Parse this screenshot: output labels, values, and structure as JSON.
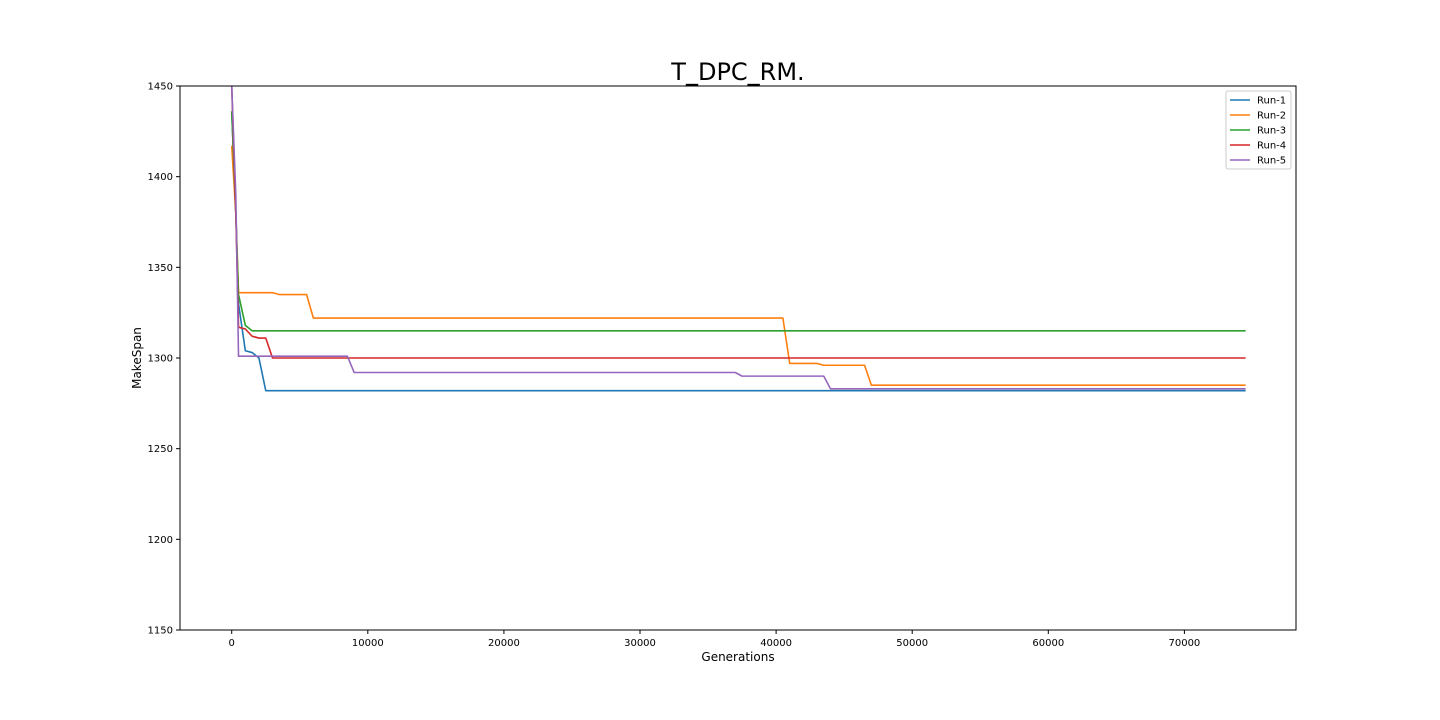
{
  "chart_data": {
    "type": "line",
    "title": "T_DPC_RM.",
    "xlabel": "Generations",
    "ylabel": "MakeSpan",
    "xlim": [
      -3800,
      78200
    ],
    "ylim": [
      1150,
      1450
    ],
    "xticks": [
      0,
      10000,
      20000,
      30000,
      40000,
      50000,
      60000,
      70000
    ],
    "yticks": [
      1150,
      1200,
      1250,
      1300,
      1350,
      1400,
      1450
    ],
    "grid": false,
    "legend": "top-right",
    "series": [
      {
        "name": "Run-1",
        "color": "#1f77b4",
        "points": [
          [
            0,
            1436
          ],
          [
            300,
            1380
          ],
          [
            500,
            1330
          ],
          [
            1000,
            1304
          ],
          [
            1500,
            1303
          ],
          [
            2000,
            1300
          ],
          [
            2500,
            1282
          ],
          [
            74500,
            1282
          ]
        ]
      },
      {
        "name": "Run-2",
        "color": "#ff7f0e",
        "points": [
          [
            0,
            1417
          ],
          [
            300,
            1380
          ],
          [
            500,
            1336
          ],
          [
            3000,
            1336
          ],
          [
            3500,
            1335
          ],
          [
            5500,
            1335
          ],
          [
            6000,
            1322
          ],
          [
            40500,
            1322
          ],
          [
            41000,
            1297
          ],
          [
            43000,
            1297
          ],
          [
            43500,
            1296
          ],
          [
            46500,
            1296
          ],
          [
            47000,
            1285
          ],
          [
            74500,
            1285
          ]
        ]
      },
      {
        "name": "Run-3",
        "color": "#2ca02c",
        "points": [
          [
            0,
            1436
          ],
          [
            300,
            1380
          ],
          [
            500,
            1335
          ],
          [
            1000,
            1318
          ],
          [
            1500,
            1315
          ],
          [
            74500,
            1315
          ]
        ]
      },
      {
        "name": "Run-4",
        "color": "#d62728",
        "points": [
          [
            0,
            1450
          ],
          [
            300,
            1380
          ],
          [
            500,
            1317
          ],
          [
            1000,
            1316
          ],
          [
            1500,
            1312
          ],
          [
            2000,
            1311
          ],
          [
            2500,
            1311
          ],
          [
            3000,
            1300
          ],
          [
            74500,
            1300
          ]
        ]
      },
      {
        "name": "Run-5",
        "color": "#9467bd",
        "points": [
          [
            0,
            1450
          ],
          [
            300,
            1390
          ],
          [
            500,
            1301
          ],
          [
            8500,
            1301
          ],
          [
            9000,
            1292
          ],
          [
            37000,
            1292
          ],
          [
            37500,
            1290
          ],
          [
            43500,
            1290
          ],
          [
            44000,
            1283
          ],
          [
            74500,
            1283
          ]
        ]
      }
    ]
  }
}
